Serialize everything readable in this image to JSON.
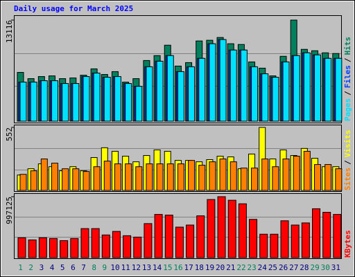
{
  "chart_data": [
    {
      "type": "bar",
      "title": "Daily usage for March 2025",
      "ylim": [
        0,
        13116
      ],
      "yticks": [
        13116
      ],
      "legend_separator": "/",
      "series": [
        {
          "name": "Hits",
          "color": "#00805C",
          "values": [
            6330,
            5520,
            5790,
            5880,
            5520,
            5610,
            5970,
            6790,
            6060,
            6430,
            5070,
            5520,
            7870,
            8510,
            9860,
            7150,
            7600,
            10410,
            10500,
            10860,
            10050,
            9950,
            7690,
            6880,
            5880,
            8420,
            13116,
            9320,
            9140,
            8870,
            8780
          ]
        },
        {
          "name": "Files",
          "color": "#0040FF",
          "values": [
            5070,
            5070,
            5250,
            5250,
            4890,
            4890,
            5790,
            6240,
            5700,
            5790,
            4890,
            4520,
            7060,
            7780,
            8510,
            6430,
            7060,
            8150,
            10050,
            10590,
            9230,
            9230,
            7060,
            6150,
            5700,
            7690,
            8510,
            8870,
            8600,
            8150,
            8150
          ]
        },
        {
          "name": "Pages",
          "color": "#00E0FF",
          "values": [
            5070,
            5070,
            5250,
            5250,
            4890,
            4890,
            5790,
            6240,
            5700,
            5790,
            4890,
            4520,
            7060,
            7780,
            8510,
            6430,
            7060,
            8150,
            10050,
            10590,
            9230,
            9230,
            7060,
            6150,
            5700,
            7690,
            8510,
            8870,
            8600,
            8150,
            8150
          ]
        }
      ]
    },
    {
      "type": "bar",
      "ylim": [
        0,
        552
      ],
      "yticks": [
        552
      ],
      "legend_separator": "/",
      "series": [
        {
          "name": "Visits",
          "color": "#FFFF00",
          "values": [
            135,
            190,
            233,
            208,
            172,
            208,
            172,
            288,
            374,
            343,
            300,
            251,
            306,
            355,
            343,
            263,
            263,
            251,
            270,
            300,
            294,
            190,
            319,
            552,
            276,
            355,
            306,
            368,
            282,
            208,
            208
          ]
        },
        {
          "name": "Sites",
          "color": "#FF8000",
          "values": [
            141,
            172,
            276,
            239,
            190,
            190,
            166,
            208,
            257,
            233,
            233,
            208,
            233,
            233,
            233,
            233,
            263,
            221,
            251,
            276,
            251,
            196,
            196,
            276,
            208,
            276,
            300,
            343,
            227,
            227,
            190
          ]
        }
      ]
    },
    {
      "type": "bar",
      "ylim": [
        0,
        997125
      ],
      "yticks": [
        997125
      ],
      "categories": [
        "1",
        "2",
        "3",
        "4",
        "5",
        "6",
        "7",
        "8",
        "9",
        "10",
        "11",
        "12",
        "13",
        "14",
        "15",
        "16",
        "17",
        "18",
        "19",
        "20",
        "21",
        "22",
        "23",
        "24",
        "25",
        "26",
        "27",
        "28",
        "29",
        "30",
        "31"
      ],
      "category_colors": [
        "#00805C",
        "#00805C",
        "#000080",
        "#000080",
        "#000080",
        "#000080",
        "#000080",
        "#00805C",
        "#00805C",
        "#000080",
        "#000080",
        "#000080",
        "#000080",
        "#000080",
        "#00805C",
        "#00805C",
        "#000080",
        "#000080",
        "#000080",
        "#000080",
        "#000080",
        "#00805C",
        "#00805C",
        "#000080",
        "#000080",
        "#000080",
        "#000080",
        "#000080",
        "#00805C",
        "#00805C",
        "#000080"
      ],
      "series": [
        {
          "name": "KBytes",
          "color": "#FF0000",
          "values": [
            325000,
            290000,
            325000,
            313000,
            278000,
            313000,
            475000,
            475000,
            371000,
            429000,
            359000,
            336000,
            557000,
            707000,
            696000,
            499000,
            533000,
            684000,
            951000,
            997125,
            939000,
            881000,
            626000,
            383000,
            383000,
            603000,
            533000,
            568000,
            800000,
            742000,
            707000
          ]
        }
      ]
    }
  ]
}
